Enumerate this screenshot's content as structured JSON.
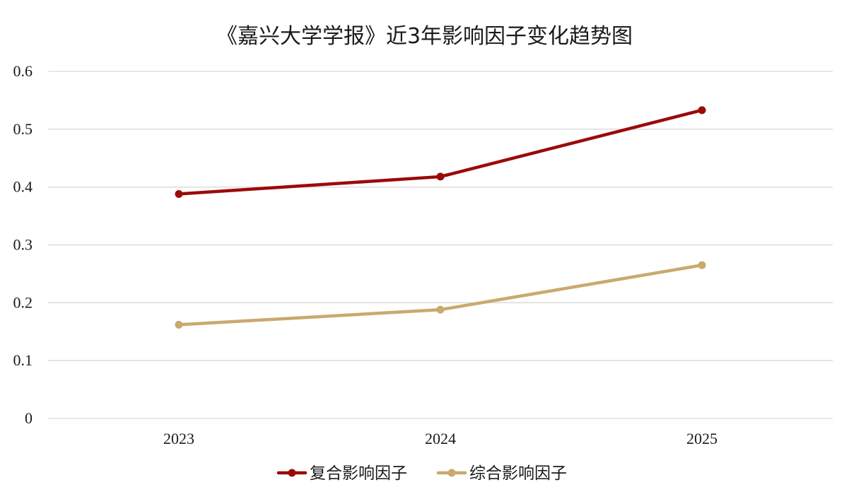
{
  "chart_data": {
    "type": "line",
    "title": "《嘉兴大学学报》近3年影响因子变化趋势图",
    "xlabel": "",
    "ylabel": "",
    "categories": [
      "2023",
      "2024",
      "2025"
    ],
    "ylim": [
      0,
      0.6
    ],
    "yticks": [
      "0",
      "0.1",
      "0.2",
      "0.3",
      "0.4",
      "0.5",
      "0.6"
    ],
    "grid": true,
    "legend_position": "bottom",
    "series": [
      {
        "name": "复合影响因子",
        "values": [
          0.388,
          0.418,
          0.533
        ],
        "color": "#9b0a0a"
      },
      {
        "name": "综合影响因子",
        "values": [
          0.162,
          0.188,
          0.265
        ],
        "color": "#c9a96e"
      }
    ]
  }
}
